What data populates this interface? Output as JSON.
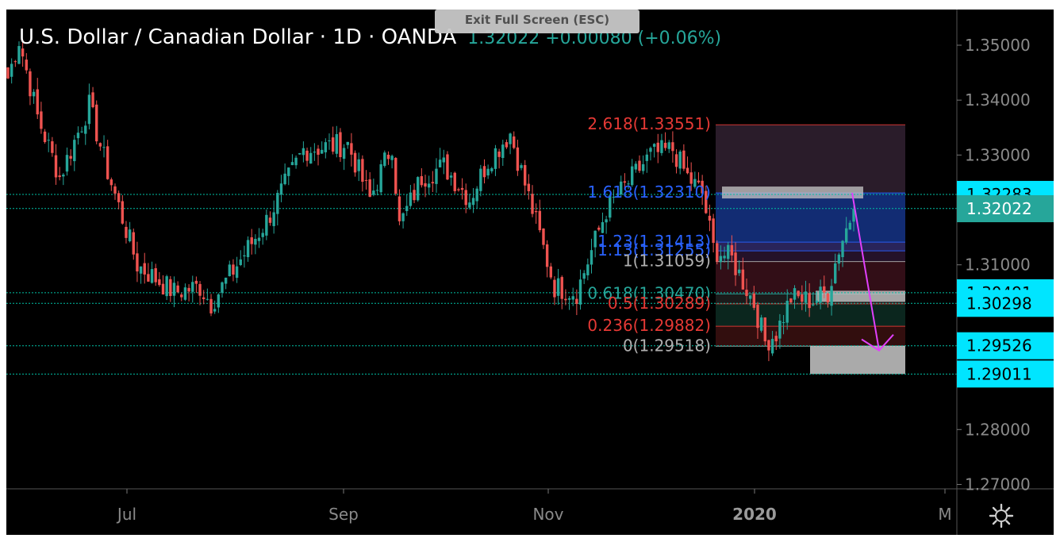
{
  "header": {
    "symbol_title": "U.S. Dollar / Canadian Dollar · 1D · OANDA",
    "quote": "1.32022 +0.00080 (+0.06%)",
    "exit_fullscreen_label": "Exit Full Screen (ESC)"
  },
  "colors": {
    "background": "#000000",
    "bull": "#26a69a",
    "bear": "#ef5350",
    "axis_text": "#8a8a8a",
    "price_tag_bg": "#00e5ff",
    "current_tag_bg": "#26a69a",
    "arrow": "#e040fb",
    "fib_red": "#e53935",
    "fib_blue": "#2962ff",
    "fib_green": "#26a69a",
    "fib_gray": "#b0b0b0"
  },
  "icons": {
    "settings": "gear-icon"
  },
  "chart_data": {
    "type": "candlestick",
    "title": "U.S. Dollar / Canadian Dollar · 1D · OANDA",
    "ylim": [
      1.2692,
      1.3565
    ],
    "y_ticks": [
      "1.35000",
      "1.34000",
      "1.33000",
      "1.31000",
      "1.28000",
      "1.27000"
    ],
    "x_ticks": [
      {
        "label": "Jul",
        "bold": false
      },
      {
        "label": "Sep",
        "bold": false
      },
      {
        "label": "Nov",
        "bold": false
      },
      {
        "label": "2020",
        "bold": true
      },
      {
        "label": "M",
        "bold": false
      }
    ],
    "price_tags": [
      {
        "label": "1.32283",
        "value": 1.32283
      },
      {
        "label": "1.32026",
        "value": 1.32026
      },
      {
        "label": "1.30491",
        "value": 1.30491
      },
      {
        "label": "1.30298",
        "value": 1.30298
      },
      {
        "label": "1.29526",
        "value": 1.29526
      },
      {
        "label": "1.29011",
        "value": 1.29011
      }
    ],
    "current_price": {
      "label": "1.32022",
      "value": 1.32022
    },
    "fib_levels": [
      {
        "label": "2.618(1.33551)",
        "value": 1.33551,
        "color": "#e53935"
      },
      {
        "label": "1.618(1.32310)",
        "value": 1.3231,
        "color": "#2962ff"
      },
      {
        "label": "1.23(1.31413)",
        "value": 1.31413,
        "color": "#2962ff"
      },
      {
        "label": "1.13(1.31255)",
        "value": 1.31255,
        "color": "#2962ff"
      },
      {
        "label": "1(1.31059)",
        "value": 1.31059,
        "color": "#b0b0b0"
      },
      {
        "label": "0.618(1.30470)",
        "value": 1.3047,
        "color": "#26a69a"
      },
      {
        "label": "0.5(1.30289)",
        "value": 1.30289,
        "color": "#e53935"
      },
      {
        "label": "0.236(1.29882)",
        "value": 1.29882,
        "color": "#e53935"
      },
      {
        "label": "0(1.29518)",
        "value": 1.29518,
        "color": "#b0b0b0"
      }
    ],
    "waypoints": [
      {
        "i": 0,
        "p": 1.344
      },
      {
        "i": 3,
        "p": 1.351
      },
      {
        "i": 8,
        "p": 1.337
      },
      {
        "i": 14,
        "p": 1.326
      },
      {
        "i": 22,
        "p": 1.339
      },
      {
        "i": 27,
        "p": 1.327
      },
      {
        "i": 35,
        "p": 1.31
      },
      {
        "i": 45,
        "p": 1.305
      },
      {
        "i": 52,
        "p": 1.306
      },
      {
        "i": 55,
        "p": 1.303
      },
      {
        "i": 58,
        "p": 1.306
      },
      {
        "i": 70,
        "p": 1.318
      },
      {
        "i": 80,
        "p": 1.331
      },
      {
        "i": 92,
        "p": 1.332
      },
      {
        "i": 98,
        "p": 1.322
      },
      {
        "i": 104,
        "p": 1.332
      },
      {
        "i": 106,
        "p": 1.317
      },
      {
        "i": 112,
        "p": 1.326
      },
      {
        "i": 118,
        "p": 1.328
      },
      {
        "i": 125,
        "p": 1.322
      },
      {
        "i": 130,
        "p": 1.329
      },
      {
        "i": 136,
        "p": 1.334
      },
      {
        "i": 142,
        "p": 1.32
      },
      {
        "i": 148,
        "p": 1.306
      },
      {
        "i": 154,
        "p": 1.305
      },
      {
        "i": 162,
        "p": 1.32
      },
      {
        "i": 168,
        "p": 1.325
      },
      {
        "i": 174,
        "p": 1.33
      },
      {
        "i": 180,
        "p": 1.331
      },
      {
        "i": 184,
        "p": 1.326
      },
      {
        "i": 188,
        "p": 1.323
      },
      {
        "i": 191,
        "p": 1.313
      },
      {
        "i": 196,
        "p": 1.311
      },
      {
        "i": 202,
        "p": 1.303
      },
      {
        "i": 205,
        "p": 1.296
      },
      {
        "i": 208,
        "p": 1.2975
      },
      {
        "i": 212,
        "p": 1.304
      },
      {
        "i": 218,
        "p": 1.3035
      },
      {
        "i": 222,
        "p": 1.305
      },
      {
        "i": 225,
        "p": 1.313
      },
      {
        "i": 229,
        "p": 1.32022
      }
    ]
  }
}
